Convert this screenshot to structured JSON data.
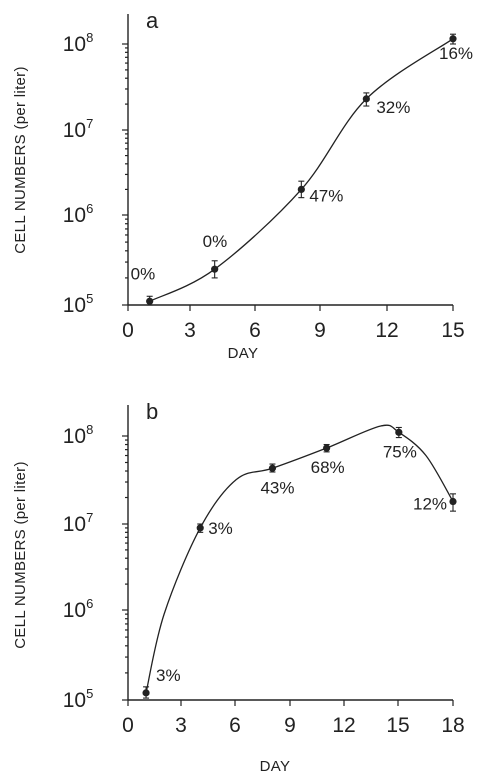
{
  "chart_data": [
    {
      "type": "line",
      "panel": "a",
      "xlabel": "DAY",
      "ylabel": "CELL NUMBERS (per liter)",
      "yscale": "log",
      "xlim": [
        0,
        15
      ],
      "ylim": [
        100000,
        150000000
      ],
      "x_ticks": [
        "0",
        "3",
        "6",
        "9",
        "12",
        "15"
      ],
      "y_ticks": [
        {
          "base": "10",
          "exp": "5"
        },
        {
          "base": "10",
          "exp": "6"
        },
        {
          "base": "10",
          "exp": "7"
        },
        {
          "base": "10",
          "exp": "8"
        }
      ],
      "series": [
        {
          "x": [
            1,
            4,
            8,
            11,
            15
          ],
          "y": [
            110000,
            250000,
            2000000,
            23000000,
            115000000
          ],
          "err_low": [
            95000,
            200000,
            1600000,
            19000000,
            100000000
          ],
          "err_high": [
            125000,
            310000,
            2500000,
            27000000,
            130000000
          ],
          "labels": [
            "0%",
            "0%",
            "47%",
            "32%",
            "16%"
          ]
        }
      ]
    },
    {
      "type": "line",
      "panel": "b",
      "xlabel": "DAY",
      "ylabel": "CELL NUMBERS (per liter)",
      "yscale": "log",
      "xlim": [
        0,
        18
      ],
      "ylim": [
        100000,
        150000000
      ],
      "x_ticks": [
        "0",
        "3",
        "6",
        "9",
        "12",
        "15",
        "18"
      ],
      "y_ticks": [
        {
          "base": "10",
          "exp": "5"
        },
        {
          "base": "10",
          "exp": "6"
        },
        {
          "base": "10",
          "exp": "7"
        },
        {
          "base": "10",
          "exp": "8"
        }
      ],
      "series": [
        {
          "x": [
            1,
            4,
            8,
            11,
            15,
            18
          ],
          "y": [
            120000,
            9000000,
            43000000,
            73000000,
            110000000,
            18000000
          ],
          "err_low": [
            105000,
            8000000,
            39000000,
            66000000,
            96000000,
            14000000
          ],
          "err_high": [
            140000,
            10000000,
            48000000,
            80000000,
            125000000,
            22000000
          ],
          "labels": [
            "3%",
            "3%",
            "43%",
            "68%",
            "75%",
            "12%"
          ]
        }
      ]
    }
  ]
}
